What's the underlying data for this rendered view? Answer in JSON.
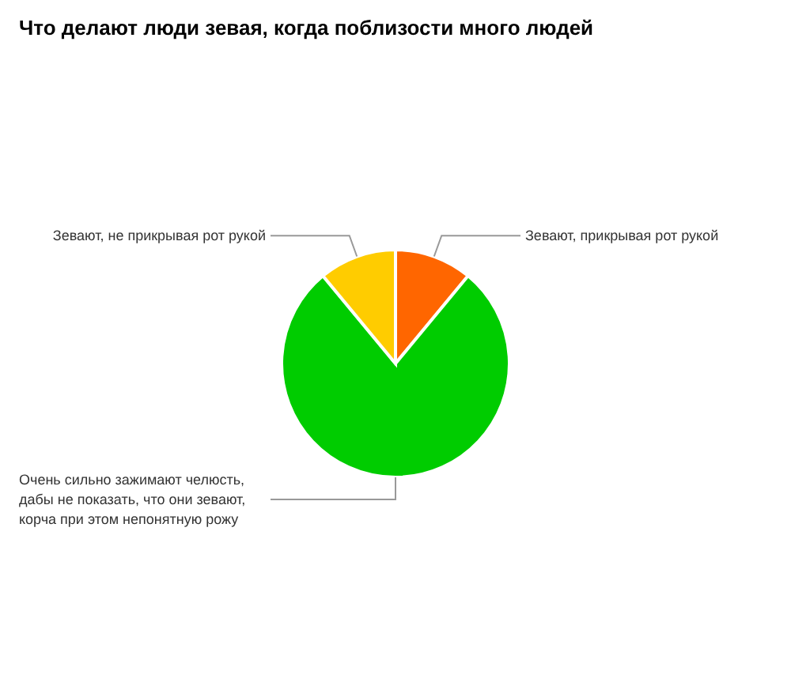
{
  "chart_data": {
    "type": "pie",
    "title": "Что делают люди зевая, когда поблизости много людей",
    "categories": [
      "Зевают, прикрывая рот рукой",
      "Очень сильно зажимают челюсть, дабы не показать, что они зевают, корча при этом непонятную рожу",
      "Зевают, не прикрывая рот рукой"
    ],
    "values": [
      11,
      78,
      11
    ],
    "colors": [
      "#ff6600",
      "#00cc00",
      "#ffcc00"
    ]
  }
}
